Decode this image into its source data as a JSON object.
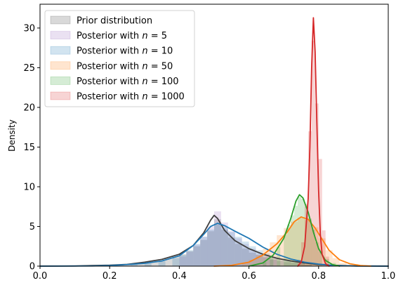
{
  "chart_data": {
    "type": "histogram-kde",
    "title": "",
    "xlabel": "",
    "ylabel": "Density",
    "xlim": [
      0.0,
      1.0
    ],
    "ylim": [
      0,
      33
    ],
    "xticks": [
      "0.0",
      "0.2",
      "0.4",
      "0.6",
      "0.8",
      "1.0"
    ],
    "xtick_values": [
      0.0,
      0.2,
      0.4,
      0.6,
      0.8,
      1.0
    ],
    "yticks": [
      "0",
      "5",
      "10",
      "15",
      "20",
      "25",
      "30"
    ],
    "ytick_values": [
      0,
      5,
      10,
      15,
      20,
      25,
      30
    ],
    "grid": false,
    "legend_position": "upper-left",
    "series": [
      {
        "name": "Prior distribution",
        "legend_prefix": "Prior distribution",
        "legend_n": "",
        "color": "#3f3f3f",
        "bin_width": 0.02,
        "bins": [
          [
            0.2,
            0.1
          ],
          [
            0.22,
            0.15
          ],
          [
            0.24,
            0.2
          ],
          [
            0.26,
            0.25
          ],
          [
            0.28,
            0.35
          ],
          [
            0.3,
            0.45
          ],
          [
            0.32,
            0.55
          ],
          [
            0.34,
            0.7
          ],
          [
            0.36,
            0.9
          ],
          [
            0.38,
            1.2
          ],
          [
            0.4,
            1.5
          ],
          [
            0.42,
            1.9
          ],
          [
            0.44,
            2.5
          ],
          [
            0.46,
            3.3
          ],
          [
            0.48,
            4.4
          ],
          [
            0.5,
            5.9
          ],
          [
            0.52,
            4.6
          ],
          [
            0.54,
            3.6
          ],
          [
            0.56,
            2.8
          ],
          [
            0.58,
            2.2
          ],
          [
            0.6,
            1.7
          ],
          [
            0.62,
            1.4
          ],
          [
            0.64,
            1.1
          ],
          [
            0.66,
            0.85
          ],
          [
            0.68,
            0.65
          ],
          [
            0.7,
            0.5
          ],
          [
            0.72,
            0.4
          ],
          [
            0.74,
            0.3
          ],
          [
            0.76,
            0.2
          ]
        ],
        "kde": [
          [
            0.0,
            0.0
          ],
          [
            0.1,
            0.02
          ],
          [
            0.2,
            0.12
          ],
          [
            0.25,
            0.22
          ],
          [
            0.3,
            0.5
          ],
          [
            0.35,
            0.85
          ],
          [
            0.4,
            1.5
          ],
          [
            0.44,
            2.6
          ],
          [
            0.47,
            4.2
          ],
          [
            0.49,
            5.8
          ],
          [
            0.5,
            6.4
          ],
          [
            0.51,
            6.0
          ],
          [
            0.53,
            4.5
          ],
          [
            0.56,
            3.2
          ],
          [
            0.6,
            2.2
          ],
          [
            0.64,
            1.5
          ],
          [
            0.68,
            1.0
          ],
          [
            0.72,
            0.65
          ],
          [
            0.76,
            0.4
          ],
          [
            0.8,
            0.2
          ],
          [
            0.85,
            0.1
          ],
          [
            0.9,
            0.03
          ],
          [
            1.0,
            0.0
          ]
        ]
      },
      {
        "name": "Posterior with n = 5",
        "legend_prefix": "Posterior with ",
        "legend_n": "5",
        "color": "#9467bd",
        "bin_width": 0.02,
        "bins": [
          [
            0.4,
            1.2
          ],
          [
            0.42,
            1.8
          ],
          [
            0.44,
            2.7
          ],
          [
            0.46,
            3.7
          ],
          [
            0.48,
            5.0
          ],
          [
            0.5,
            6.9
          ],
          [
            0.52,
            5.5
          ],
          [
            0.54,
            4.4
          ],
          [
            0.56,
            3.5
          ],
          [
            0.58,
            2.8
          ],
          [
            0.6,
            2.2
          ],
          [
            0.62,
            1.6
          ],
          [
            0.64,
            1.2
          ],
          [
            0.66,
            0.8
          ]
        ],
        "kde": []
      },
      {
        "name": "Posterior with n = 10",
        "legend_prefix": "Posterior with ",
        "legend_n": "10",
        "color": "#1f77b4",
        "bin_width": 0.02,
        "bins": [
          [
            0.22,
            0.1
          ],
          [
            0.26,
            0.2
          ],
          [
            0.3,
            0.35
          ],
          [
            0.34,
            0.6
          ],
          [
            0.38,
            1.0
          ],
          [
            0.4,
            1.4
          ],
          [
            0.42,
            2.0
          ],
          [
            0.44,
            2.8
          ],
          [
            0.46,
            3.7
          ],
          [
            0.48,
            4.6
          ],
          [
            0.5,
            5.3
          ],
          [
            0.52,
            4.9
          ],
          [
            0.54,
            4.3
          ],
          [
            0.56,
            3.7
          ],
          [
            0.58,
            3.1
          ],
          [
            0.6,
            2.5
          ],
          [
            0.62,
            2.0
          ],
          [
            0.64,
            1.6
          ],
          [
            0.66,
            1.2
          ],
          [
            0.68,
            0.9
          ],
          [
            0.7,
            0.7
          ],
          [
            0.72,
            0.5
          ],
          [
            0.74,
            0.35
          ],
          [
            0.76,
            0.2
          ],
          [
            0.78,
            0.1
          ]
        ],
        "kde": [
          [
            0.0,
            0.0
          ],
          [
            0.15,
            0.02
          ],
          [
            0.2,
            0.08
          ],
          [
            0.25,
            0.2
          ],
          [
            0.3,
            0.35
          ],
          [
            0.35,
            0.65
          ],
          [
            0.4,
            1.3
          ],
          [
            0.44,
            2.6
          ],
          [
            0.47,
            4.0
          ],
          [
            0.49,
            5.0
          ],
          [
            0.51,
            5.4
          ],
          [
            0.53,
            5.1
          ],
          [
            0.56,
            4.4
          ],
          [
            0.6,
            3.5
          ],
          [
            0.64,
            2.4
          ],
          [
            0.68,
            1.5
          ],
          [
            0.72,
            0.9
          ],
          [
            0.76,
            0.5
          ],
          [
            0.8,
            0.25
          ],
          [
            0.85,
            0.08
          ],
          [
            0.9,
            0.02
          ],
          [
            1.0,
            0.0
          ]
        ]
      },
      {
        "name": "Posterior with n = 50",
        "legend_prefix": "Posterior with ",
        "legend_n": "50",
        "color": "#ff7f0e",
        "bin_width": 0.02,
        "bins": [
          [
            0.58,
            0.4
          ],
          [
            0.6,
            0.8
          ],
          [
            0.62,
            1.4
          ],
          [
            0.64,
            2.2
          ],
          [
            0.66,
            3.0
          ],
          [
            0.68,
            3.9
          ],
          [
            0.7,
            4.8
          ],
          [
            0.72,
            5.6
          ],
          [
            0.74,
            6.1
          ],
          [
            0.76,
            5.8
          ],
          [
            0.78,
            4.9
          ],
          [
            0.8,
            3.5
          ],
          [
            0.82,
            2.0
          ],
          [
            0.84,
            1.0
          ],
          [
            0.86,
            0.4
          ],
          [
            0.88,
            0.15
          ]
        ],
        "kde": [
          [
            0.5,
            0.0
          ],
          [
            0.55,
            0.1
          ],
          [
            0.6,
            0.5
          ],
          [
            0.64,
            1.4
          ],
          [
            0.68,
            2.8
          ],
          [
            0.71,
            4.3
          ],
          [
            0.73,
            5.6
          ],
          [
            0.75,
            6.2
          ],
          [
            0.77,
            5.9
          ],
          [
            0.79,
            4.8
          ],
          [
            0.81,
            3.4
          ],
          [
            0.83,
            2.0
          ],
          [
            0.86,
            0.8
          ],
          [
            0.89,
            0.3
          ],
          [
            0.92,
            0.08
          ],
          [
            0.95,
            0.0
          ]
        ]
      },
      {
        "name": "Posterior with n = 100",
        "legend_prefix": "Posterior with ",
        "legend_n": "100",
        "color": "#2ca02c",
        "bin_width": 0.01,
        "bins": [
          [
            0.64,
            0.5
          ],
          [
            0.66,
            1.2
          ],
          [
            0.68,
            2.4
          ],
          [
            0.7,
            4.0
          ],
          [
            0.71,
            5.2
          ],
          [
            0.72,
            6.4
          ],
          [
            0.73,
            7.6
          ],
          [
            0.74,
            8.7
          ],
          [
            0.75,
            8.5
          ],
          [
            0.76,
            7.5
          ],
          [
            0.77,
            6.0
          ],
          [
            0.78,
            4.6
          ],
          [
            0.79,
            3.0
          ],
          [
            0.8,
            1.8
          ],
          [
            0.82,
            0.9
          ],
          [
            0.84,
            0.4
          ]
        ],
        "kde": [
          [
            0.6,
            0.0
          ],
          [
            0.64,
            0.4
          ],
          [
            0.67,
            1.4
          ],
          [
            0.7,
            3.5
          ],
          [
            0.72,
            6.0
          ],
          [
            0.735,
            8.2
          ],
          [
            0.745,
            9.0
          ],
          [
            0.755,
            8.6
          ],
          [
            0.77,
            6.8
          ],
          [
            0.785,
            4.3
          ],
          [
            0.8,
            2.2
          ],
          [
            0.82,
            0.7
          ],
          [
            0.84,
            0.2
          ],
          [
            0.86,
            0.0
          ]
        ]
      },
      {
        "name": "Posterior with n = 1000",
        "legend_prefix": "Posterior with ",
        "legend_n": "1000",
        "color": "#d62728",
        "bin_width": 0.01,
        "bins": [
          [
            0.74,
            0.8
          ],
          [
            0.75,
            3.0
          ],
          [
            0.76,
            7.8
          ],
          [
            0.77,
            17.0
          ],
          [
            0.78,
            28.4
          ],
          [
            0.79,
            20.5
          ],
          [
            0.8,
            13.5
          ],
          [
            0.81,
            4.5
          ],
          [
            0.82,
            1.2
          ]
        ],
        "kde": [
          [
            0.74,
            0.0
          ],
          [
            0.75,
            0.5
          ],
          [
            0.76,
            2.5
          ],
          [
            0.77,
            8.5
          ],
          [
            0.775,
            15.0
          ],
          [
            0.78,
            25.0
          ],
          [
            0.785,
            31.3
          ],
          [
            0.79,
            27.0
          ],
          [
            0.795,
            18.0
          ],
          [
            0.8,
            9.5
          ],
          [
            0.805,
            4.0
          ],
          [
            0.81,
            1.5
          ],
          [
            0.82,
            0.3
          ],
          [
            0.83,
            0.0
          ]
        ]
      }
    ]
  }
}
